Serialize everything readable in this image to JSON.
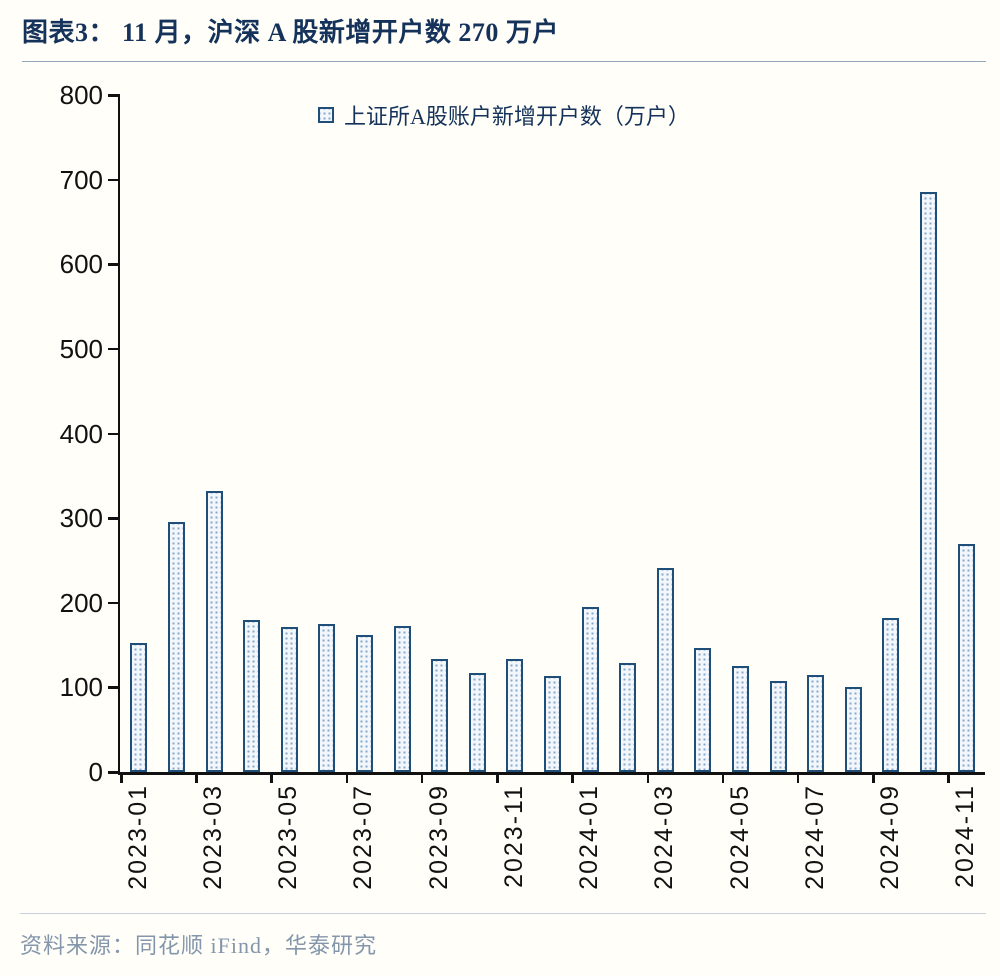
{
  "header": {
    "title": "图表3： 11 月，沪深 A 股新增开户数 270 万户"
  },
  "legend": {
    "label": "上证所A股账户新增开户数（万户）"
  },
  "footer": {
    "source": "资料来源：同花顺 iFind，华泰研究"
  },
  "colors": {
    "bar_border_navy": "#1F4E79",
    "bar_fill_dot": "#86A8CE",
    "bar_fill_bg": "#F3F7FB",
    "title_navy": "#15325B",
    "axis_black": "#111111",
    "source_gray_blue": "#8496AB",
    "page_background": "#FFFEF8"
  },
  "chart_data": {
    "type": "bar",
    "title": "图表3： 11 月，沪深 A 股新增开户数 270 万户",
    "legend_entries": [
      "上证所A股账户新增开户数（万户）"
    ],
    "legend_position": "top",
    "grid": false,
    "xlabel": "",
    "ylabel": "",
    "ylim": [
      0,
      800
    ],
    "ytick_step": 100,
    "x_label_interval": 2,
    "categories": [
      "2023-01",
      "2023-02",
      "2023-03",
      "2023-04",
      "2023-05",
      "2023-06",
      "2023-07",
      "2023-08",
      "2023-09",
      "2023-10",
      "2023-11",
      "2023-12",
      "2024-01",
      "2024-02",
      "2024-03",
      "2024-04",
      "2024-05",
      "2024-06",
      "2024-07",
      "2024-08",
      "2024-09",
      "2024-10",
      "2024-11"
    ],
    "values": [
      153,
      295,
      332,
      180,
      171,
      175,
      162,
      173,
      134,
      117,
      134,
      113,
      195,
      129,
      241,
      147,
      125,
      107,
      115,
      100,
      182,
      685,
      270
    ]
  }
}
